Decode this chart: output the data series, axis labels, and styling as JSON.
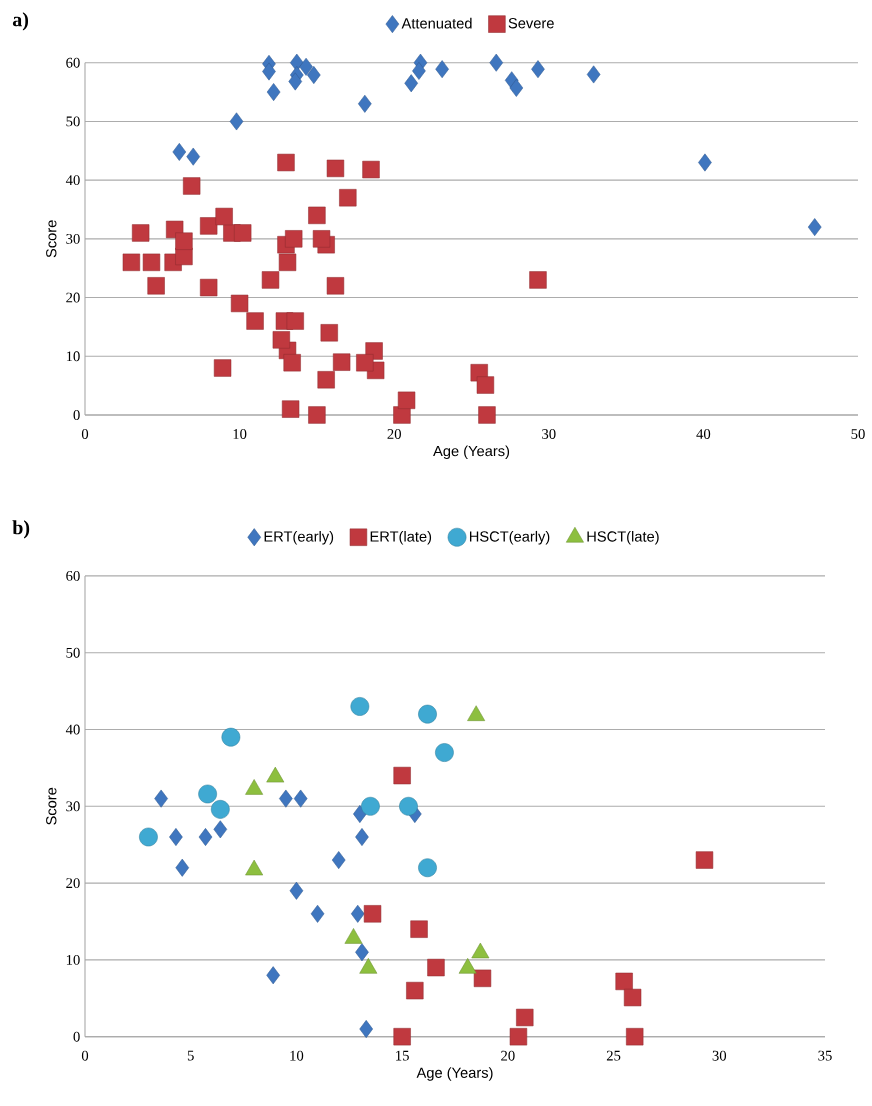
{
  "chart_data": [
    {
      "type": "scatter",
      "title": "a)",
      "xlabel": "Age (Years)",
      "ylabel": "Score",
      "xlim": [
        0,
        50
      ],
      "ylim": [
        0,
        60
      ],
      "xticks": [
        0,
        10,
        20,
        30,
        40,
        50
      ],
      "yticks": [
        0,
        10,
        20,
        30,
        40,
        50,
        60
      ],
      "grid": "y",
      "legend": "top",
      "series": [
        {
          "name": "Attenuated",
          "color": "#3f76bf",
          "marker": "diamond",
          "x": [
            11.9,
            11.9,
            13.7,
            14.3,
            13.7,
            13.6,
            14.8,
            12.2,
            18.1,
            9.8,
            6.1,
            7.0,
            21.7,
            21.6,
            21.1,
            23.1,
            26.6,
            27.6,
            27.9,
            29.3,
            32.9,
            40.1,
            47.2
          ],
          "values": [
            59.8,
            58.5,
            60,
            59.3,
            57.9,
            56.8,
            57.9,
            55,
            53,
            50,
            44.8,
            44,
            60,
            58.6,
            56.5,
            58.9,
            60,
            57,
            55.7,
            58.9,
            58,
            43,
            32
          ]
        },
        {
          "name": "Severe",
          "color": "#c0393f",
          "marker": "square",
          "x": [
            3.6,
            4.3,
            4.6,
            5.7,
            6.4,
            9.5,
            10.2,
            8.9,
            10.0,
            11.0,
            12.0,
            13.0,
            13.1,
            12.9,
            13.1,
            13.3,
            15.6,
            13.6,
            15.0,
            15.8,
            16.6,
            15.6,
            18.8,
            15.0,
            20.5,
            20.8,
            25.5,
            25.9,
            26.0,
            29.3,
            13.0,
            6.9,
            5.8,
            6.4,
            3.0,
            13.5,
            16.2,
            17.0,
            15.3,
            16.2,
            8.0,
            9.0,
            8.0,
            12.7,
            13.4,
            18.5,
            18.7,
            18.1
          ],
          "values": [
            31,
            26,
            22,
            26,
            27,
            31,
            31,
            8,
            19,
            16,
            23,
            29,
            26,
            16,
            11,
            1,
            29,
            16,
            34,
            14,
            9,
            6,
            7.6,
            0,
            0,
            2.5,
            7.2,
            5.1,
            0,
            23,
            43,
            39,
            31.6,
            29.6,
            26,
            30,
            42,
            37,
            30,
            22,
            32.2,
            33.8,
            21.7,
            12.8,
            8.9,
            41.8,
            10.9,
            8.9
          ]
        }
      ]
    },
    {
      "type": "scatter",
      "title": "b)",
      "xlabel": "Age (Years)",
      "ylabel": "Score",
      "xlim": [
        0,
        35
      ],
      "ylim": [
        0,
        60
      ],
      "xticks": [
        0,
        5,
        10,
        15,
        20,
        25,
        30,
        35
      ],
      "yticks": [
        0,
        10,
        20,
        30,
        40,
        50,
        60
      ],
      "grid": "y",
      "legend": "top",
      "series": [
        {
          "name": "ERT(early)",
          "color": "#3f76bf",
          "marker": "diamond",
          "x": [
            3.6,
            4.3,
            4.6,
            5.7,
            6.4,
            9.5,
            10.2,
            8.9,
            10.0,
            11.0,
            12.0,
            13.0,
            13.1,
            12.9,
            13.1,
            13.3,
            15.6
          ],
          "values": [
            31,
            26,
            22,
            26,
            27,
            31,
            31,
            8,
            19,
            16,
            23,
            29,
            26,
            16,
            11,
            1,
            29
          ]
        },
        {
          "name": "ERT(late)",
          "color": "#c0393f",
          "marker": "square",
          "x": [
            13.6,
            15.0,
            15.8,
            16.6,
            15.6,
            18.8,
            15.0,
            20.5,
            20.8,
            25.5,
            25.9,
            26.0,
            29.3
          ],
          "values": [
            16,
            34,
            14,
            9,
            6,
            7.6,
            0,
            0,
            2.5,
            7.2,
            5.1,
            0,
            23
          ]
        },
        {
          "name": "HSCT(early)",
          "color": "#3fa9d2",
          "marker": "circle",
          "x": [
            13.0,
            6.9,
            5.8,
            6.4,
            3.0,
            13.5,
            16.2,
            17.0,
            15.3,
            16.2
          ],
          "values": [
            43,
            39,
            31.6,
            29.6,
            26,
            30,
            42,
            37,
            30,
            22
          ]
        },
        {
          "name": "HSCT(late)",
          "color": "#8dbf3f",
          "marker": "triangle",
          "x": [
            8.0,
            9.0,
            8.0,
            12.7,
            13.4,
            18.5,
            18.7,
            18.1
          ],
          "values": [
            32.2,
            33.8,
            21.7,
            12.8,
            8.9,
            41.8,
            10.9,
            8.9
          ]
        }
      ]
    }
  ]
}
